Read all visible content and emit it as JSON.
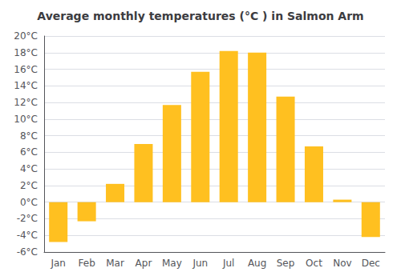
{
  "chart_data": {
    "type": "bar",
    "title": "Average monthly temperatures (°C ) in Salmon Arm",
    "categories": [
      "Jan",
      "Feb",
      "Mar",
      "Apr",
      "May",
      "Jun",
      "Jul",
      "Aug",
      "Sep",
      "Oct",
      "Nov",
      "Dec"
    ],
    "values": [
      -4.8,
      -2.3,
      2.2,
      7.0,
      11.7,
      15.7,
      18.2,
      18.0,
      12.7,
      6.7,
      0.3,
      -4.2
    ],
    "color": "#FFC020",
    "ylim": [
      -6,
      20
    ],
    "yticks": [
      {
        "value": -6,
        "label": "-6°C"
      },
      {
        "value": -4,
        "label": "-4°C"
      },
      {
        "value": -2,
        "label": "-2°C"
      },
      {
        "value": 0,
        "label": "0°C"
      },
      {
        "value": 2,
        "label": "2°C"
      },
      {
        "value": 4,
        "label": "4°C"
      },
      {
        "value": 6,
        "label": "6°C"
      },
      {
        "value": 8,
        "label": "8°C"
      },
      {
        "value": 10,
        "label": "10°C"
      },
      {
        "value": 12,
        "label": "12°C"
      },
      {
        "value": 14,
        "label": "14°C"
      },
      {
        "value": 16,
        "label": "16°C"
      },
      {
        "value": 18,
        "label": "18°C"
      },
      {
        "value": 20,
        "label": "20°C"
      }
    ],
    "grid": true
  }
}
